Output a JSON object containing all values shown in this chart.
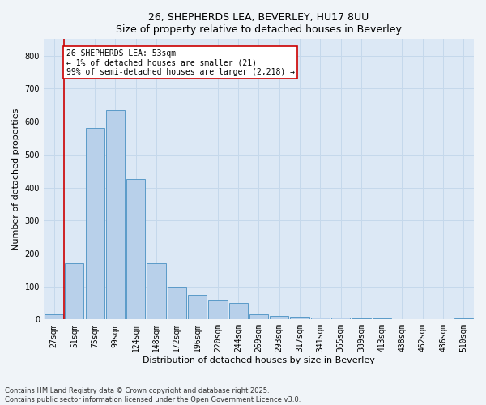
{
  "title_line1": "26, SHEPHERDS LEA, BEVERLEY, HU17 8UU",
  "title_line2": "Size of property relative to detached houses in Beverley",
  "xlabel": "Distribution of detached houses by size in Beverley",
  "ylabel": "Number of detached properties",
  "footnote": "Contains HM Land Registry data © Crown copyright and database right 2025.\nContains public sector information licensed under the Open Government Licence v3.0.",
  "bin_labels": [
    "27sqm",
    "51sqm",
    "75sqm",
    "99sqm",
    "124sqm",
    "148sqm",
    "172sqm",
    "196sqm",
    "220sqm",
    "244sqm",
    "269sqm",
    "293sqm",
    "317sqm",
    "341sqm",
    "365sqm",
    "389sqm",
    "413sqm",
    "438sqm",
    "462sqm",
    "486sqm",
    "510sqm"
  ],
  "bar_heights": [
    15,
    170,
    580,
    635,
    425,
    170,
    100,
    75,
    60,
    50,
    15,
    10,
    8,
    5,
    5,
    4,
    3,
    2,
    2,
    1,
    3
  ],
  "bar_color": "#b8d0ea",
  "bar_edgecolor": "#5a9ac8",
  "grid_color": "#c5d8eb",
  "background_color": "#dce8f5",
  "fig_background": "#f0f4f8",
  "vline_x_idx": 0.5,
  "vline_color": "#cc0000",
  "annotation_text": "26 SHEPHERDS LEA: 53sqm\n← 1% of detached houses are smaller (21)\n99% of semi-detached houses are larger (2,218) →",
  "annotation_box_facecolor": "#ffffff",
  "annotation_box_edgecolor": "#cc0000",
  "ylim": [
    0,
    850
  ],
  "yticks": [
    0,
    100,
    200,
    300,
    400,
    500,
    600,
    700,
    800
  ],
  "title_fontsize": 9,
  "xlabel_fontsize": 8,
  "ylabel_fontsize": 8,
  "tick_fontsize": 7,
  "annot_fontsize": 7
}
